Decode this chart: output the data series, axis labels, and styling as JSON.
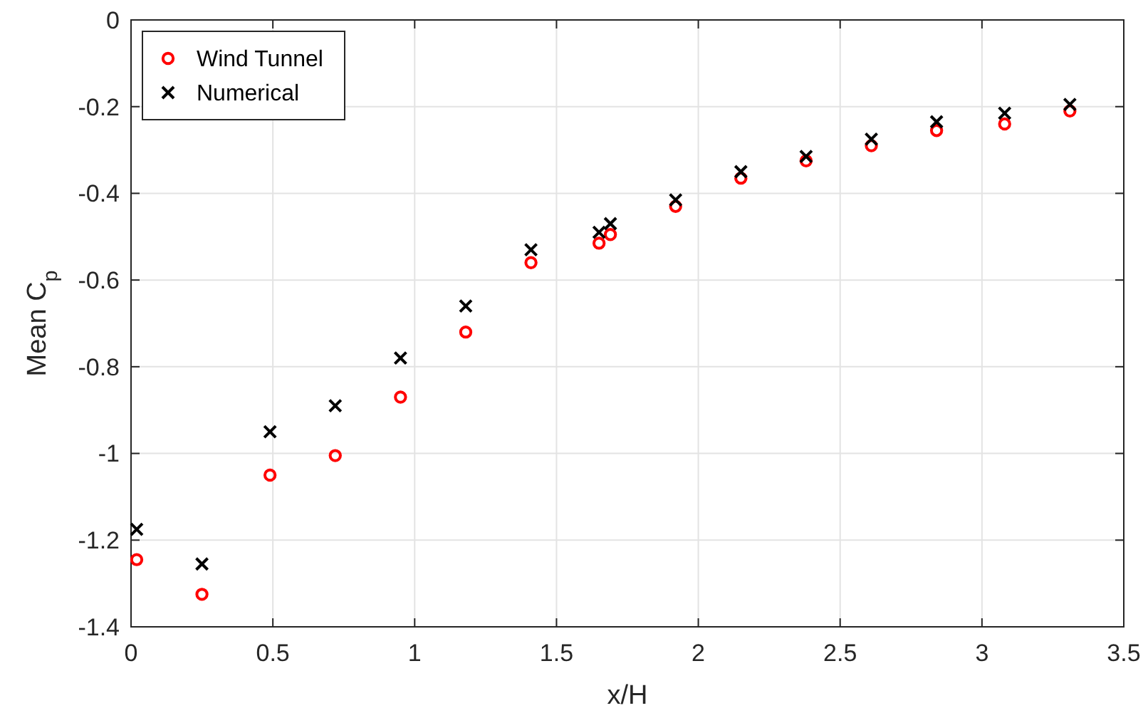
{
  "chart_data": {
    "type": "scatter",
    "xlabel": "x/H",
    "ylabel": "Mean C$_{p}$",
    "x": [
      0.02,
      0.25,
      0.49,
      0.72,
      0.95,
      1.18,
      1.41,
      1.65,
      1.69,
      1.92,
      2.15,
      2.38,
      2.61,
      2.84,
      3.08,
      3.31
    ],
    "series": [
      {
        "name": "Wind Tunnel",
        "color": "#ff0000",
        "marker": "circle",
        "values": [
          -1.245,
          -1.325,
          -1.05,
          -1.005,
          -0.87,
          -0.72,
          -0.56,
          -0.515,
          -0.495,
          -0.43,
          -0.365,
          -0.325,
          -0.29,
          -0.255,
          -0.24,
          -0.21
        ]
      },
      {
        "name": "Numerical",
        "color": "#000000",
        "marker": "cross",
        "values": [
          -1.175,
          -1.255,
          -0.95,
          -0.89,
          -0.78,
          -0.66,
          -0.53,
          -0.49,
          -0.47,
          -0.415,
          -0.35,
          -0.315,
          -0.275,
          -0.235,
          -0.215,
          -0.195
        ]
      }
    ],
    "xlim": [
      0,
      3.5
    ],
    "xticks": [
      0,
      0.5,
      1,
      1.5,
      2,
      2.5,
      3,
      3.5
    ],
    "ylim": [
      -1.4,
      0
    ],
    "yticks": [
      -1.4,
      -1.2,
      -1,
      -0.8,
      -0.6,
      -0.4,
      -0.2,
      0
    ],
    "grid": true,
    "legend": "top left"
  }
}
